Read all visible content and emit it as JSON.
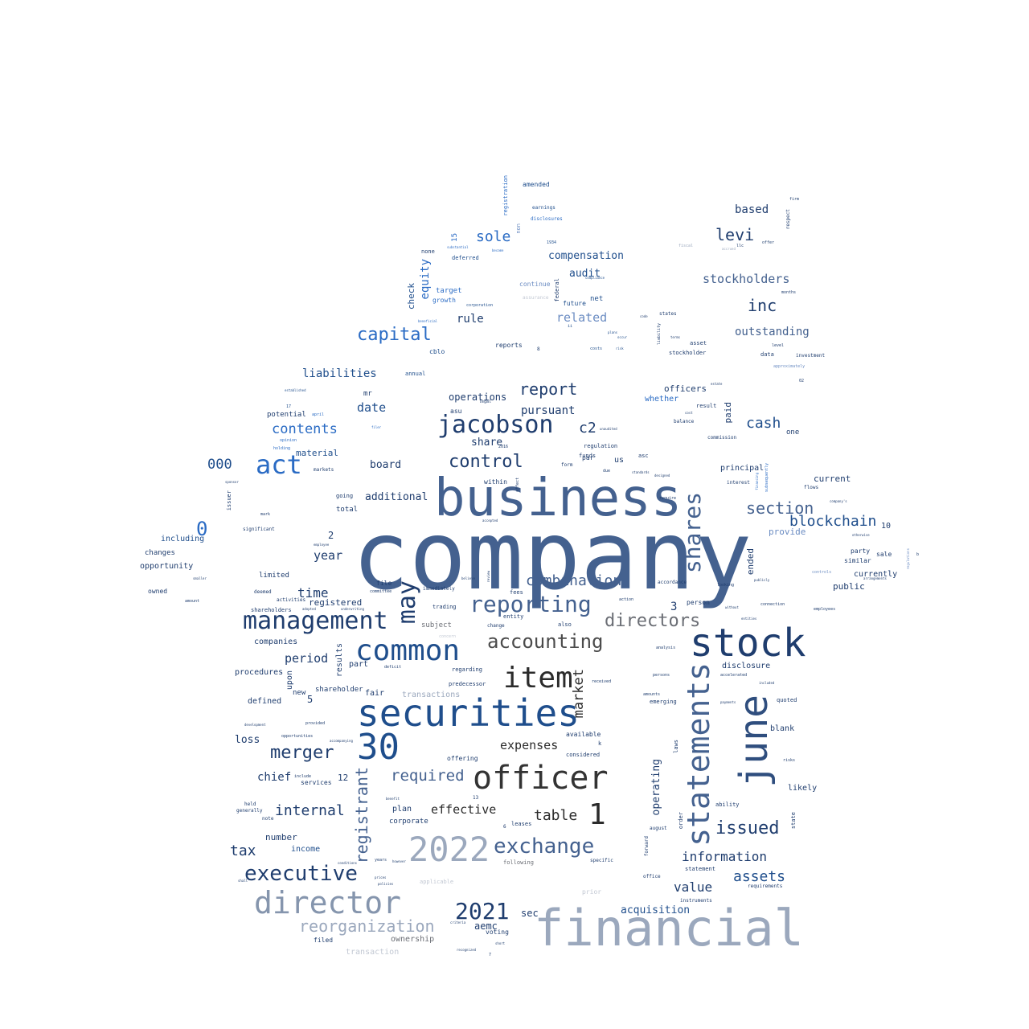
{
  "palette": {
    "navy": "#1f3d6e",
    "slate": "#44618f",
    "blue": "#2a6bc4",
    "bright": "#3a86d6",
    "dark": "#2b2b2b",
    "gray": "#6b6e75",
    "pale": "#9ba8bd",
    "faint": "#c2c8d3"
  },
  "words": {
    "company": "company",
    "business": "business",
    "financial": "financial",
    "securities": "securities",
    "stock": "stock",
    "june": "june",
    "statements": "statements",
    "officer": "officer",
    "director": "director",
    "common": "common",
    "management": "management",
    "y2022": "2022",
    "n30": "30",
    "item": "item",
    "act": "act",
    "jacobson": "jacobson",
    "shares": "shares",
    "reporting": "reporting",
    "may": "may",
    "exchange": "exchange",
    "executive": "executive",
    "reorganization": "reorganization",
    "directors": "directors",
    "accounting": "accounting",
    "y2021": "2021",
    "capital": "capital",
    "issued": "issued",
    "one_big": "1",
    "control": "control",
    "combination": "combination",
    "merger": "merger",
    "section": "section",
    "blockchain": "blockchain",
    "registrant": "registrant",
    "report": "report",
    "required": "required",
    "inc": "inc",
    "levi": "levi",
    "market": "market",
    "cash": "cash",
    "table": "table",
    "zero": "0",
    "assets": "assets",
    "internal": "internal",
    "information": "information",
    "sole": "sole",
    "c2": "c2",
    "value": "value",
    "contents": "contents",
    "stockholders": "stockholders",
    "liabilities": "liabilities",
    "related": "related",
    "tax": "tax",
    "equity": "equity",
    "outstanding": "outstanding",
    "thousand": "000",
    "expenses": "expenses",
    "effective": "effective",
    "date": "date",
    "period": "period",
    "year": "year",
    "time": "time",
    "pursuant": "pursuant",
    "compensation": "compensation",
    "based": "based",
    "additional": "additional",
    "rule": "rule",
    "chief": "chief",
    "acquisition": "acquisition",
    "audit": "audit",
    "operations": "operations",
    "loss": "loss",
    "operating": "operating",
    "share": "share",
    "board": "board",
    "registered": "registered",
    "sec": "sec",
    "aemc": "aemc",
    "ownership": "ownership",
    "number": "number",
    "income": "income",
    "material": "material",
    "check": "check",
    "ended": "ended",
    "paid": "paid",
    "officers": "officers",
    "whether": "whether",
    "current": "current",
    "public": "public",
    "provide": "provide",
    "transactions": "transactions",
    "disclosure": "disclosure",
    "companies": "companies",
    "procedures": "procedures",
    "defined": "defined",
    "plan": "plan",
    "corporate": "corporate",
    "likely": "likely",
    "blank": "blank",
    "principal": "principal",
    "currently": "currently",
    "including": "including",
    "opportunity": "opportunity",
    "limited": "limited",
    "changes": "changes",
    "owned": "owned",
    "upon": "upon",
    "results": "results",
    "part": "part",
    "fair": "fair",
    "shareholder": "shareholder",
    "new": "new",
    "n5": "5",
    "n3": "3",
    "n12": "12",
    "n2": "2",
    "n10": "10",
    "n15": "15",
    "services": "services",
    "available": "available",
    "considered": "considered",
    "offering": "offering",
    "subject": "subject",
    "trading": "trading",
    "voting": "voting",
    "filed": "filed",
    "transaction": "transaction",
    "amended": "amended",
    "earnings": "earnings",
    "disclosures": "disclosures",
    "registration": "registration",
    "deferred": "deferred",
    "none": "none",
    "target": "target",
    "growth": "growth",
    "continue": "continue",
    "future": "future",
    "net": "net",
    "reports": "reports",
    "cblo": "cblo",
    "annual": "annual",
    "mr": "mr",
    "asu": "asu",
    "potential": "potential",
    "us": "us",
    "asc": "asc",
    "regulation": "regulation",
    "funds": "funds",
    "par": "par",
    "within": "within",
    "total": "total",
    "going": "going",
    "file": "file",
    "stockholder": "stockholder",
    "asset": "asset",
    "data": "data",
    "result": "result",
    "balance": "balance",
    "commission": "commission",
    "person": "person",
    "accordance": "accordance",
    "party": "party",
    "similar": "similar",
    "sale": "sale",
    "flows": "flows",
    "investment": "investment",
    "interest": "interest",
    "level": "level",
    "states": "states",
    "nonword": "non",
    "fees": "fees",
    "entity": "entity",
    "leases": "leases",
    "also": "also",
    "change": "change",
    "regarding": "regarding",
    "predecessor": "predecessor",
    "received": "received",
    "emerging": "emerging",
    "amounts": "amounts",
    "quoted": "quoted",
    "statement": "statement",
    "instruments": "instruments",
    "requirements": "requirements",
    "office": "office",
    "forward": "forward",
    "order": "order",
    "laws": "laws",
    "august": "august",
    "ability": "ability",
    "state": "state",
    "shareholders": "shareholders",
    "deemed": "deemed",
    "activities": "activities",
    "immediately": "immediately",
    "note": "note",
    "held": "held",
    "generally": "generally",
    "applicable": "applicable",
    "prior": "prior",
    "specific": "specific",
    "following": "following",
    "years": "years",
    "federal": "federal",
    "firm": "firm",
    "respect": "respect",
    "months": "months",
    "employees": "employees",
    "connection": "connection",
    "accelerated": "accelerated",
    "significant": "significant",
    "markets": "markets",
    "issuer": "issuer",
    "amount": "amount",
    "mark": "mark",
    "legal": "legal",
    "assurance": "assurance",
    "corporation": "corporation",
    "costs": "costs",
    "one_word": "one",
    "approximately": "approximately",
    "beneficial": "beneficial",
    "risks": "risks",
    "persons": "persons",
    "looking": "looking",
    "payments": "payments",
    "analysis": "analysis",
    "require": "require",
    "form": "form",
    "due": "due",
    "k": "k",
    "ll": "llc",
    "establish": "established",
    "april": "april",
    "opinion": "opinion",
    "holding": "holding",
    "n13": "13",
    "n8": "8",
    "n6": "6",
    "n7": "7",
    "n2016": "2016",
    "n1934": "1934",
    "n02": "02",
    "n17": "17",
    "benefit": "benefit",
    "plans": "plans",
    "code": "code",
    "occur": "occur",
    "risk": "risk",
    "terms": "terms",
    "cost": "cost",
    "estate": "estate",
    "publicly": "publicly",
    "without": "without",
    "entities": "entities",
    "subsequently": "subsequently",
    "financing": "financing",
    "accepted": "accepted",
    "criteria": "criteria",
    "short": "short",
    "recognized": "recognized",
    "concern": "concern",
    "deficit": "deficit",
    "committee": "committee",
    "action": "action",
    "include": "include",
    "provided": "provided",
    "development": "development",
    "opportunities": "opportunities",
    "accompanying": "accompanying",
    "company_s": "company's",
    "arrangements": "arrangements",
    "otherwise": "otherwise",
    "controls": "controls",
    "liability": "liability",
    "regulations": "regulations",
    "b": "b",
    "affect": "affect",
    "contract": "contract",
    "designed": "designed",
    "standards": "standards",
    "believe": "believe",
    "review": "review",
    "adopted": "adopted",
    "underwriting": "underwriting",
    "employee": "employee",
    "shall": "shall",
    "policies": "policies",
    "prices": "prices",
    "however": "however",
    "conditions": "conditions",
    "include2": "included",
    "filer": "filer",
    "substantial": "substantial",
    "become": "become",
    "offer": "offer",
    "fiscal": "fiscal",
    "accrued": "accrued",
    "issued2": "ii",
    "sold": "sold",
    "sponsor": "sponsor",
    "smaller": "smaller",
    "authorized": "authorized",
    "unaudited": "unaudited",
    "respective": "respective",
    "compliance": "compliance"
  }
}
